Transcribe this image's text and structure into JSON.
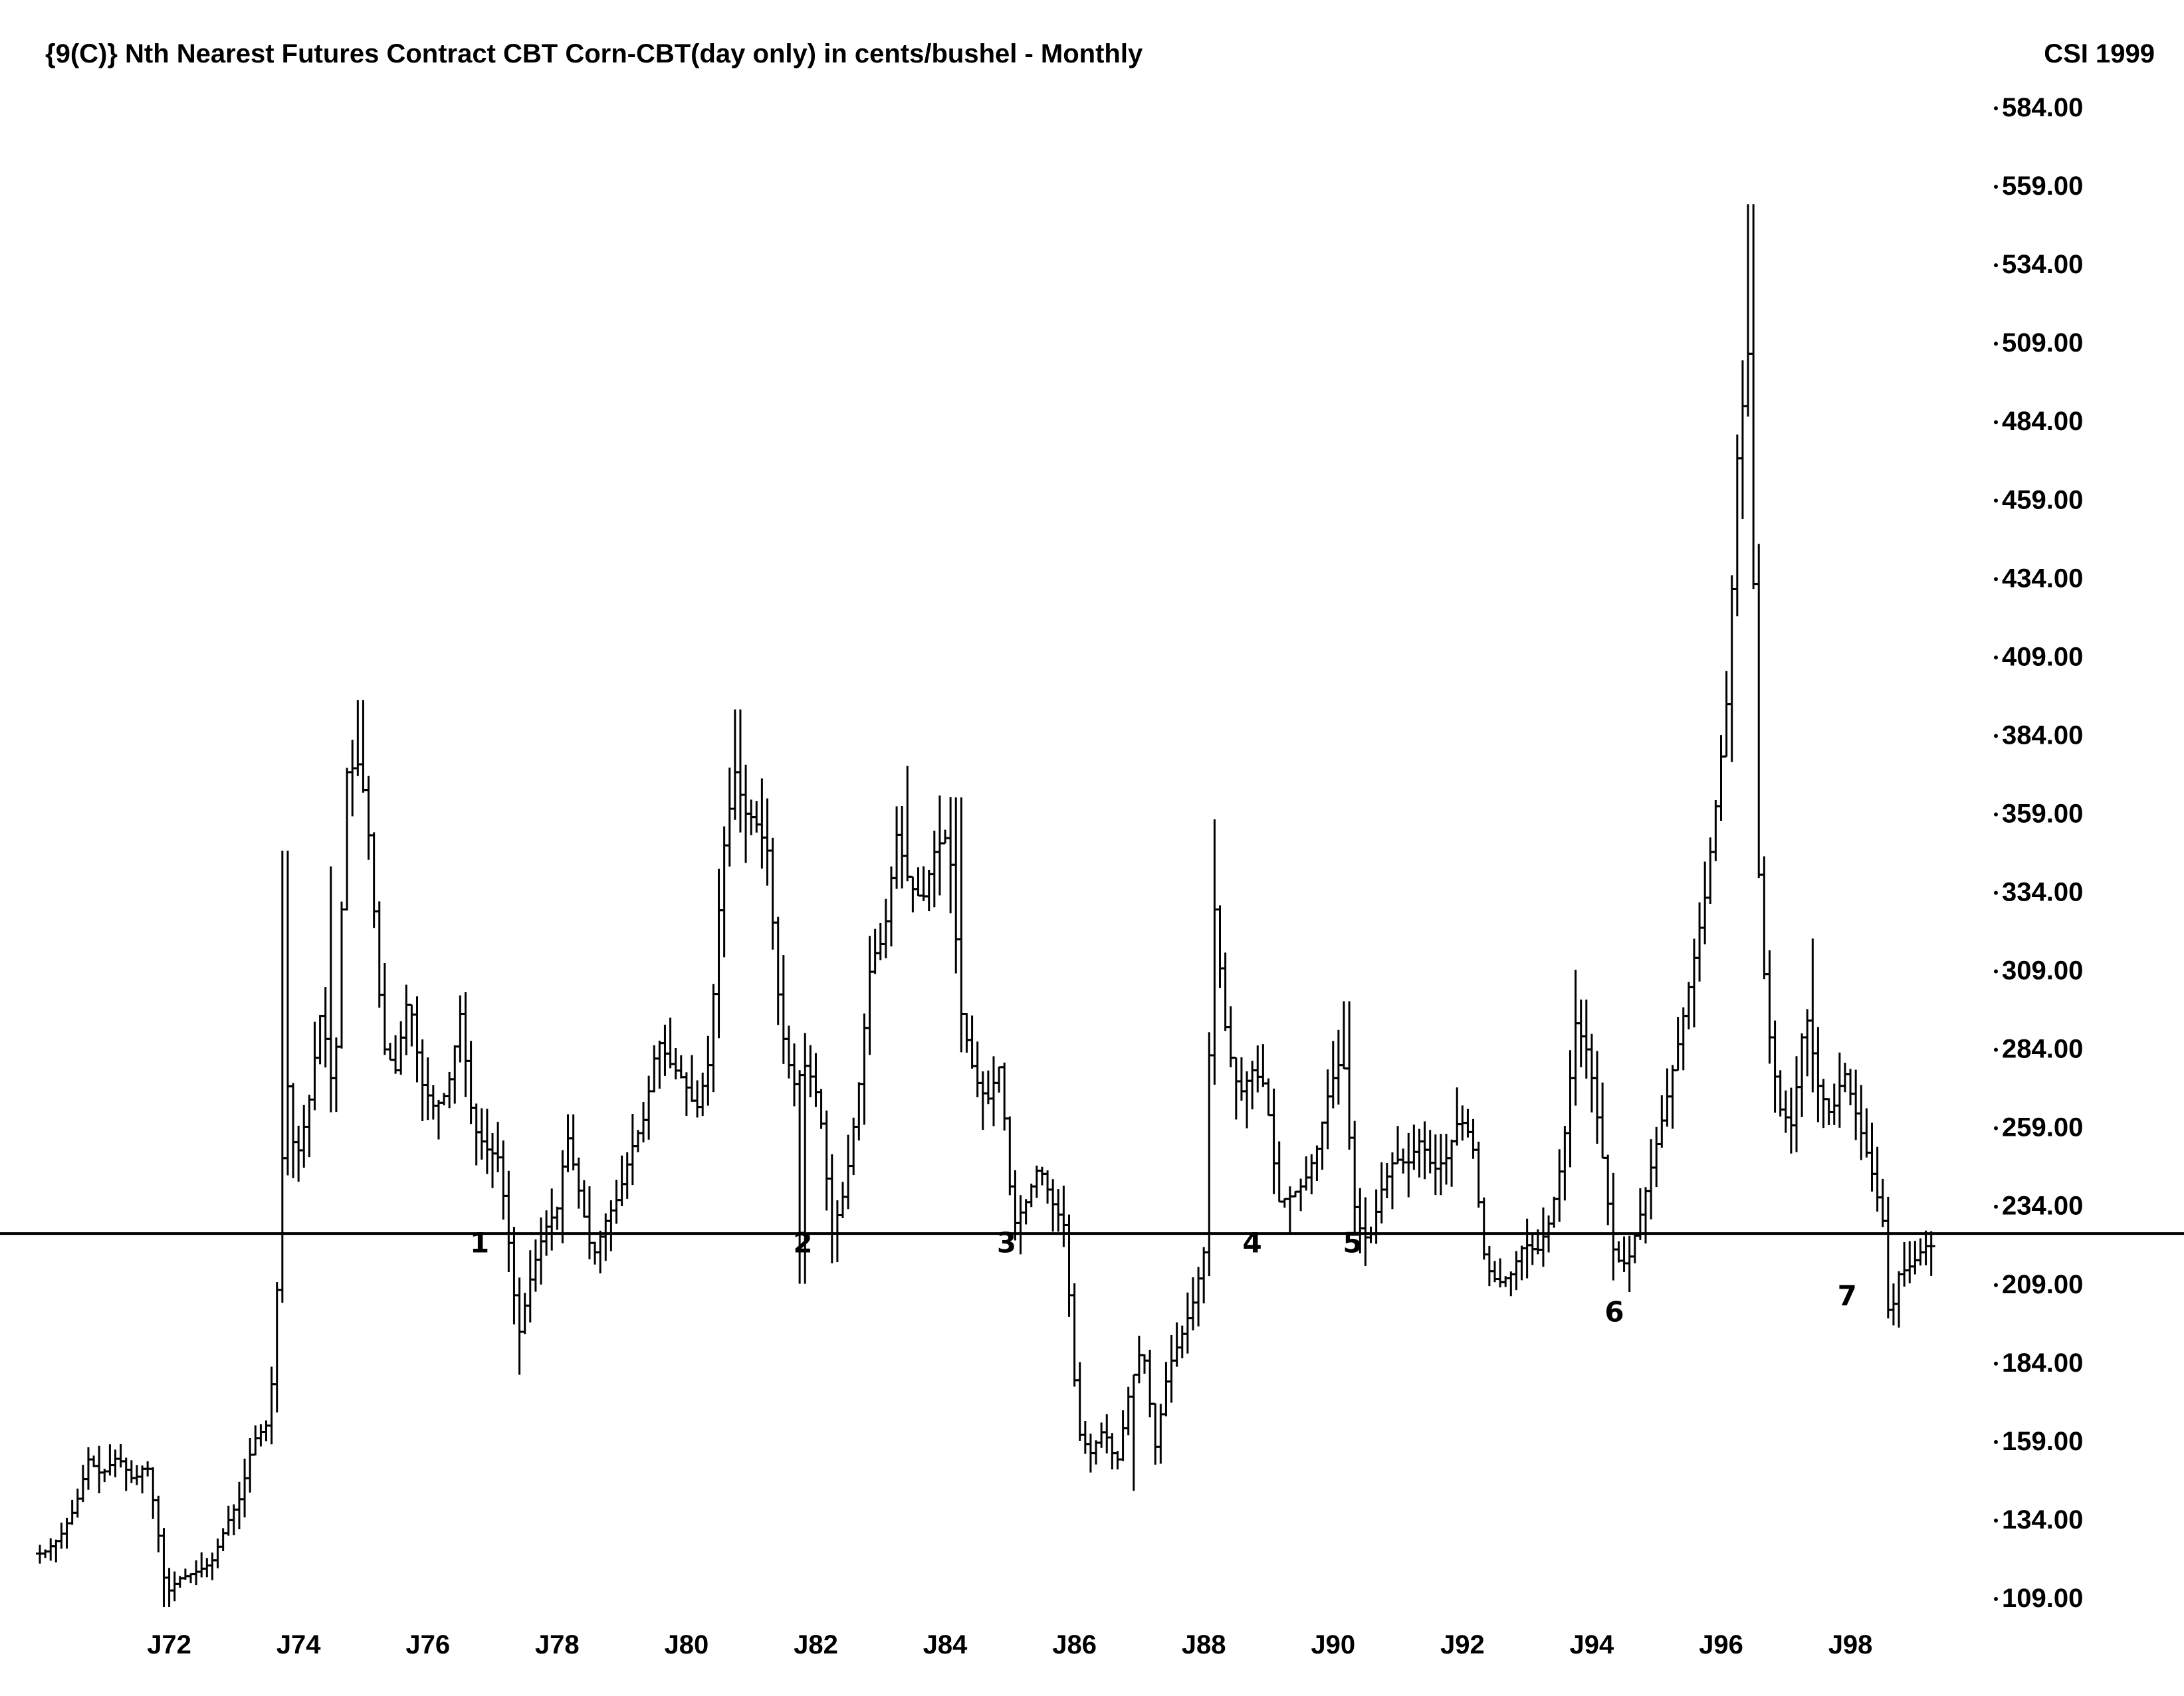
{
  "chart_data": {
    "type": "ohlc-bar",
    "title": "{9(C)} Nth Nearest Futures Contract CBT Corn-CBT(day only) in cents/bushel - Monthly",
    "source_label": "CSI 1999",
    "x_range": [
      1970.0,
      1999.5
    ],
    "y_range": [
      109,
      584
    ],
    "y_ticks": [
      "584.00",
      "559.00",
      "534.00",
      "509.00",
      "484.00",
      "459.00",
      "434.00",
      "409.00",
      "384.00",
      "359.00",
      "334.00",
      "309.00",
      "284.00",
      "259.00",
      "234.00",
      "209.00",
      "184.00",
      "159.00",
      "134.00",
      "109.00"
    ],
    "x_ticks": [
      {
        "label": "J72",
        "x": 1972
      },
      {
        "label": "J74",
        "x": 1974
      },
      {
        "label": "J76",
        "x": 1976
      },
      {
        "label": "J78",
        "x": 1978
      },
      {
        "label": "J80",
        "x": 1980
      },
      {
        "label": "J82",
        "x": 1982
      },
      {
        "label": "J84",
        "x": 1984
      },
      {
        "label": "J86",
        "x": 1986
      },
      {
        "label": "J88",
        "x": 1988
      },
      {
        "label": "J90",
        "x": 1990
      },
      {
        "label": "J92",
        "x": 1992
      },
      {
        "label": "J94",
        "x": 1994
      },
      {
        "label": "J96",
        "x": 1996
      },
      {
        "label": "J98",
        "x": 1998
      }
    ],
    "reference_line": {
      "y": 228
    },
    "cycle_markers": [
      {
        "label": "1",
        "x": 1976.8,
        "y": 222
      },
      {
        "label": "2",
        "x": 1981.8,
        "y": 222
      },
      {
        "label": "3",
        "x": 1984.95,
        "y": 222
      },
      {
        "label": "4",
        "x": 1988.75,
        "y": 222
      },
      {
        "label": "5",
        "x": 1990.3,
        "y": 222
      },
      {
        "label": "6",
        "x": 1994.35,
        "y": 200
      },
      {
        "label": "7",
        "x": 1997.95,
        "y": 205
      }
    ],
    "anchors": [
      [
        1970.05,
        126
      ],
      [
        1970.3,
        131
      ],
      [
        1970.55,
        141
      ],
      [
        1970.75,
        156
      ],
      [
        1970.95,
        151
      ],
      [
        1971.2,
        157
      ],
      [
        1971.45,
        149
      ],
      [
        1971.65,
        155
      ],
      [
        1971.8,
        137
      ],
      [
        1971.95,
        113
      ],
      [
        1972.15,
        118
      ],
      [
        1972.4,
        120
      ],
      [
        1972.65,
        123
      ],
      [
        1972.9,
        136
      ],
      [
        1973.1,
        144
      ],
      [
        1973.3,
        162
      ],
      [
        1973.55,
        168
      ],
      [
        1973.7,
        222
      ],
      [
        1973.8,
        282
      ],
      [
        1973.95,
        250
      ],
      [
        1974.15,
        268
      ],
      [
        1974.35,
        300
      ],
      [
        1974.55,
        270
      ],
      [
        1974.75,
        375
      ],
      [
        1974.95,
        378
      ],
      [
        1975.1,
        352
      ],
      [
        1975.3,
        288
      ],
      [
        1975.5,
        280
      ],
      [
        1975.7,
        305
      ],
      [
        1975.9,
        276
      ],
      [
        1976.1,
        268
      ],
      [
        1976.3,
        273
      ],
      [
        1976.5,
        298
      ],
      [
        1976.7,
        262
      ],
      [
        1976.9,
        255
      ],
      [
        1977.1,
        252
      ],
      [
        1977.25,
        225
      ],
      [
        1977.4,
        195
      ],
      [
        1977.6,
        215
      ],
      [
        1977.8,
        229
      ],
      [
        1978.0,
        236
      ],
      [
        1978.15,
        260
      ],
      [
        1978.35,
        240
      ],
      [
        1978.55,
        220
      ],
      [
        1978.75,
        232
      ],
      [
        1978.95,
        240
      ],
      [
        1979.15,
        255
      ],
      [
        1979.35,
        265
      ],
      [
        1979.55,
        290
      ],
      [
        1979.75,
        282
      ],
      [
        1979.95,
        277
      ],
      [
        1980.15,
        267
      ],
      [
        1980.35,
        283
      ],
      [
        1980.55,
        347
      ],
      [
        1980.75,
        375
      ],
      [
        1980.9,
        362
      ],
      [
        1981.05,
        360
      ],
      [
        1981.25,
        350
      ],
      [
        1981.45,
        295
      ],
      [
        1981.65,
        275
      ],
      [
        1981.85,
        282
      ],
      [
        1982.05,
        270
      ],
      [
        1982.25,
        228
      ],
      [
        1982.45,
        242
      ],
      [
        1982.65,
        272
      ],
      [
        1982.85,
        315
      ],
      [
        1983.05,
        322
      ],
      [
        1983.25,
        355
      ],
      [
        1983.45,
        339
      ],
      [
        1983.65,
        334
      ],
      [
        1983.85,
        351
      ],
      [
        1984.05,
        355
      ],
      [
        1984.25,
        298
      ],
      [
        1984.45,
        278
      ],
      [
        1984.65,
        270
      ],
      [
        1984.85,
        282
      ],
      [
        1985.05,
        230
      ],
      [
        1985.25,
        238
      ],
      [
        1985.45,
        250
      ],
      [
        1985.65,
        238
      ],
      [
        1985.85,
        230
      ],
      [
        1986.05,
        165
      ],
      [
        1986.25,
        158
      ],
      [
        1986.45,
        166
      ],
      [
        1986.65,
        154
      ],
      [
        1986.85,
        178
      ],
      [
        1987.05,
        193
      ],
      [
        1987.25,
        160
      ],
      [
        1987.45,
        185
      ],
      [
        1987.65,
        195
      ],
      [
        1987.85,
        207
      ],
      [
        1988.0,
        222
      ],
      [
        1988.15,
        335
      ],
      [
        1988.35,
        290
      ],
      [
        1988.55,
        272
      ],
      [
        1988.75,
        280
      ],
      [
        1988.95,
        275
      ],
      [
        1989.15,
        238
      ],
      [
        1989.35,
        240
      ],
      [
        1989.55,
        244
      ],
      [
        1989.75,
        255
      ],
      [
        1989.95,
        275
      ],
      [
        1990.15,
        285
      ],
      [
        1990.35,
        232
      ],
      [
        1990.55,
        225
      ],
      [
        1990.75,
        242
      ],
      [
        1990.95,
        252
      ],
      [
        1991.15,
        250
      ],
      [
        1991.35,
        258
      ],
      [
        1991.55,
        248
      ],
      [
        1991.75,
        252
      ],
      [
        1991.95,
        265
      ],
      [
        1992.15,
        258
      ],
      [
        1992.35,
        218
      ],
      [
        1992.55,
        212
      ],
      [
        1992.75,
        215
      ],
      [
        1992.95,
        225
      ],
      [
        1993.15,
        222
      ],
      [
        1993.35,
        232
      ],
      [
        1993.55,
        253
      ],
      [
        1993.75,
        295
      ],
      [
        1993.95,
        285
      ],
      [
        1994.15,
        255
      ],
      [
        1994.35,
        220
      ],
      [
        1994.55,
        218
      ],
      [
        1994.75,
        234
      ],
      [
        1994.95,
        252
      ],
      [
        1995.15,
        270
      ],
      [
        1995.35,
        290
      ],
      [
        1995.55,
        312
      ],
      [
        1995.75,
        335
      ],
      [
        1995.95,
        370
      ],
      [
        1996.1,
        400
      ],
      [
        1996.25,
        475
      ],
      [
        1996.45,
        515
      ],
      [
        1996.55,
        355
      ],
      [
        1996.7,
        298
      ],
      [
        1996.9,
        268
      ],
      [
        1997.1,
        262
      ],
      [
        1997.3,
        300
      ],
      [
        1997.5,
        275
      ],
      [
        1997.7,
        265
      ],
      [
        1997.9,
        280
      ],
      [
        1998.1,
        265
      ],
      [
        1998.3,
        250
      ],
      [
        1998.5,
        232
      ],
      [
        1998.6,
        198
      ],
      [
        1998.75,
        215
      ],
      [
        1998.95,
        218
      ],
      [
        1999.15,
        224
      ]
    ]
  }
}
